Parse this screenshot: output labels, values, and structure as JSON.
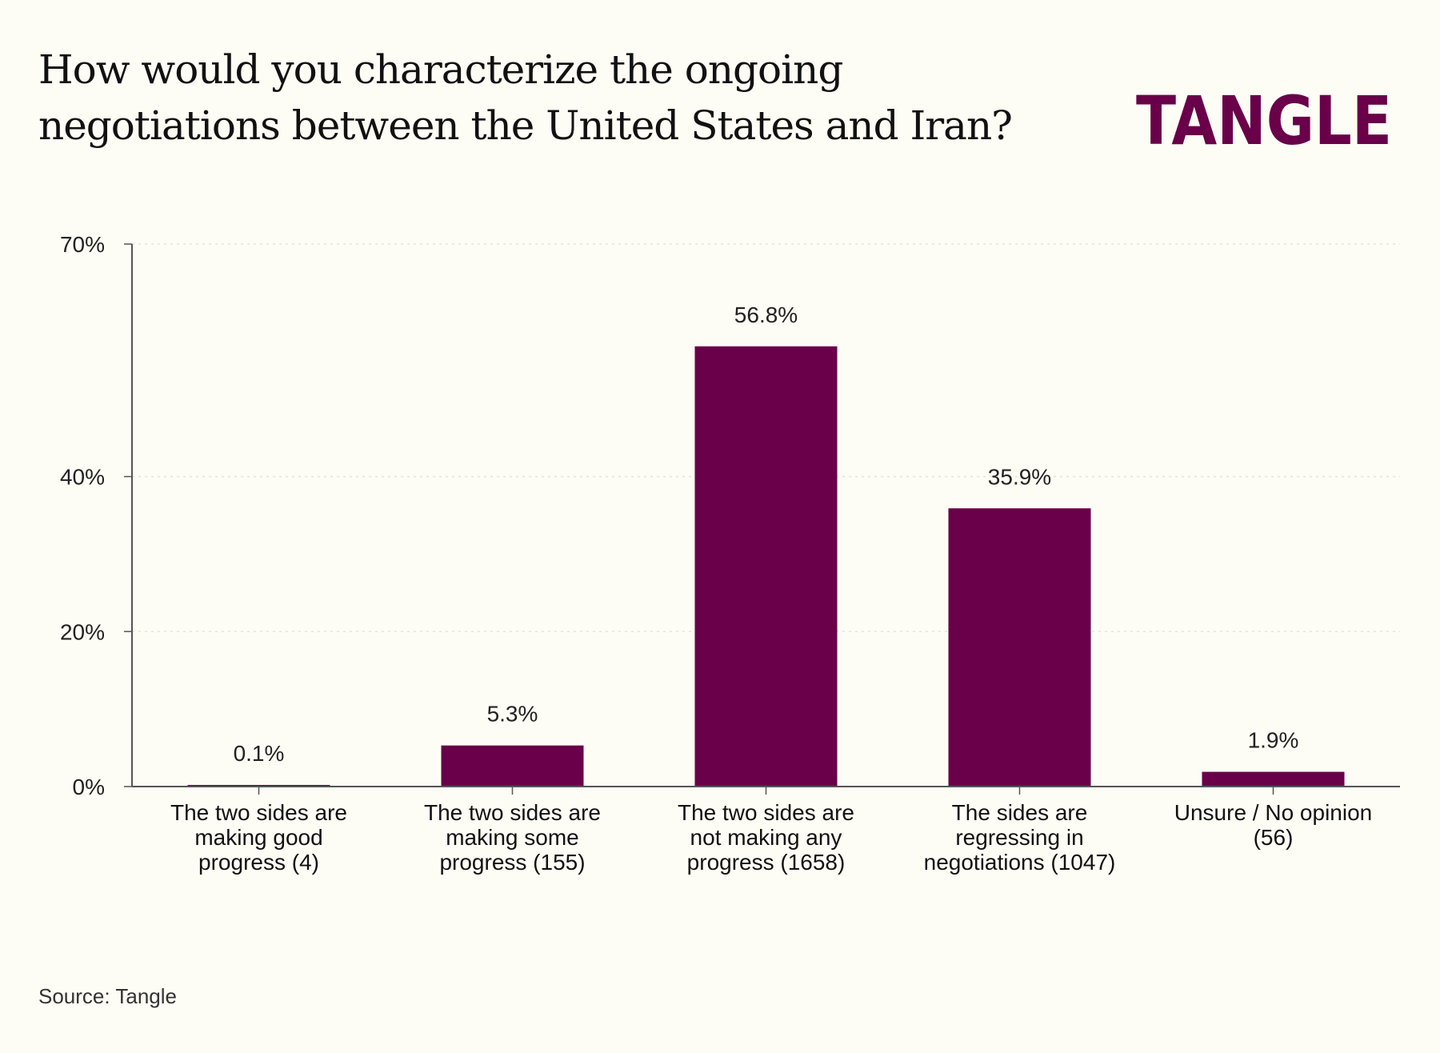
{
  "title": "How would you characterize the ongoing negotiations between the United States and Iran?",
  "logo": {
    "text": "TANGLE",
    "color": "#690049"
  },
  "source": "Source: Tangle",
  "colors": {
    "bar": "#690049",
    "axis": "#555555",
    "grid": "#e6e4d8",
    "background": "#fdfcf5"
  },
  "chart_data": {
    "type": "bar",
    "categories": [
      [
        "The two sides are",
        "making good",
        "progress (4)"
      ],
      [
        "The two sides are",
        "making some",
        "progress (155)"
      ],
      [
        "The two sides are",
        "not making any",
        "progress (1658)"
      ],
      [
        "The sides are",
        "regressing in",
        "negotiations (1047)"
      ],
      [
        "Unsure / No opinion",
        "(56)"
      ]
    ],
    "values": [
      0.1,
      5.3,
      56.8,
      35.9,
      1.9
    ],
    "value_labels": [
      "0.1%",
      "5.3%",
      "56.8%",
      "35.9%",
      "1.9%"
    ],
    "yticks": [
      0,
      20,
      40,
      70
    ],
    "ytick_labels": [
      "0%",
      "20%",
      "40%",
      "70%"
    ],
    "ylim": [
      0,
      70
    ],
    "grid": true,
    "xlabel": "",
    "ylabel": ""
  }
}
